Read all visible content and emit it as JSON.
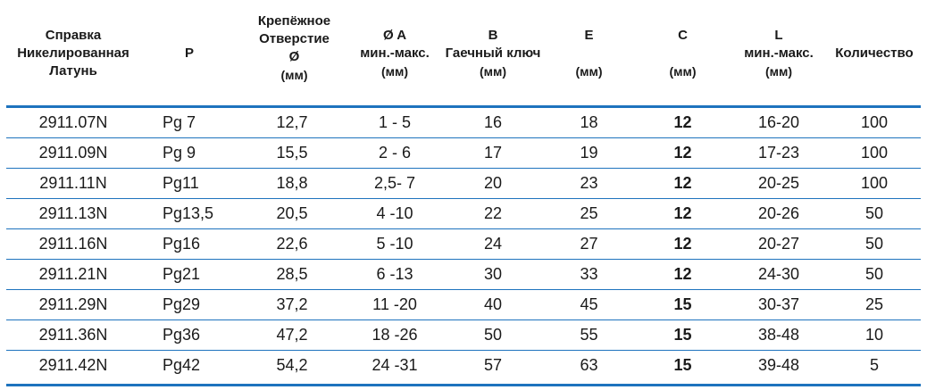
{
  "headers": {
    "ref": [
      "Справка",
      "Никелированная",
      "Латунь"
    ],
    "p": [
      "P"
    ],
    "hole": [
      "Крепёжное",
      "Отверстие",
      "Ø",
      "(мм)"
    ],
    "a": [
      "Ø A",
      "мин.-макс.",
      "(мм)"
    ],
    "b": [
      "B",
      "Гаечный ключ",
      "(мм)"
    ],
    "e": [
      "E",
      "(мм)"
    ],
    "c": [
      "C",
      "(мм)"
    ],
    "l": [
      "L",
      "мин.-макс.",
      "(мм)"
    ],
    "qty": [
      "Количество"
    ]
  },
  "rows": [
    {
      "ref": "2911.07N",
      "p": "Pg  7",
      "hole": "12,7",
      "a": "1  - 5",
      "b": "16",
      "e": "18",
      "c": "12",
      "l": "16-20",
      "qty": "100"
    },
    {
      "ref": "2911.09N",
      "p": "Pg  9",
      "hole": "15,5",
      "a": "2  - 6",
      "b": "17",
      "e": "19",
      "c": "12",
      "l": "17-23",
      "qty": "100"
    },
    {
      "ref": "2911.11N",
      "p": "Pg11",
      "hole": "18,8",
      "a": "2,5- 7",
      "b": "20",
      "e": "23",
      "c": "12",
      "l": "20-25",
      "qty": "100"
    },
    {
      "ref": "2911.13N",
      "p": "Pg13,5",
      "hole": "20,5",
      "a": "4  -10",
      "b": "22",
      "e": "25",
      "c": "12",
      "l": "20-26",
      "qty": "50"
    },
    {
      "ref": "2911.16N",
      "p": "Pg16",
      "hole": "22,6",
      "a": "5  -10",
      "b": "24",
      "e": "27",
      "c": "12",
      "l": "20-27",
      "qty": "50"
    },
    {
      "ref": "2911.21N",
      "p": "Pg21",
      "hole": "28,5",
      "a": "6  -13",
      "b": "30",
      "e": "33",
      "c": "12",
      "l": "24-30",
      "qty": "50"
    },
    {
      "ref": "2911.29N",
      "p": "Pg29",
      "hole": "37,2",
      "a": "11  -20",
      "b": "40",
      "e": "45",
      "c": "15",
      "l": "30-37",
      "qty": "25"
    },
    {
      "ref": "2911.36N",
      "p": "Pg36",
      "hole": "47,2",
      "a": "18  -26",
      "b": "50",
      "e": "55",
      "c": "15",
      "l": "38-48",
      "qty": "10"
    },
    {
      "ref": "2911.42N",
      "p": "Pg42",
      "hole": "54,2",
      "a": "24  -31",
      "b": "57",
      "e": "63",
      "c": "15",
      "l": "39-48",
      "qty": "5"
    }
  ],
  "colors": {
    "rule": "#1e73be",
    "text": "#1a1a1a"
  }
}
